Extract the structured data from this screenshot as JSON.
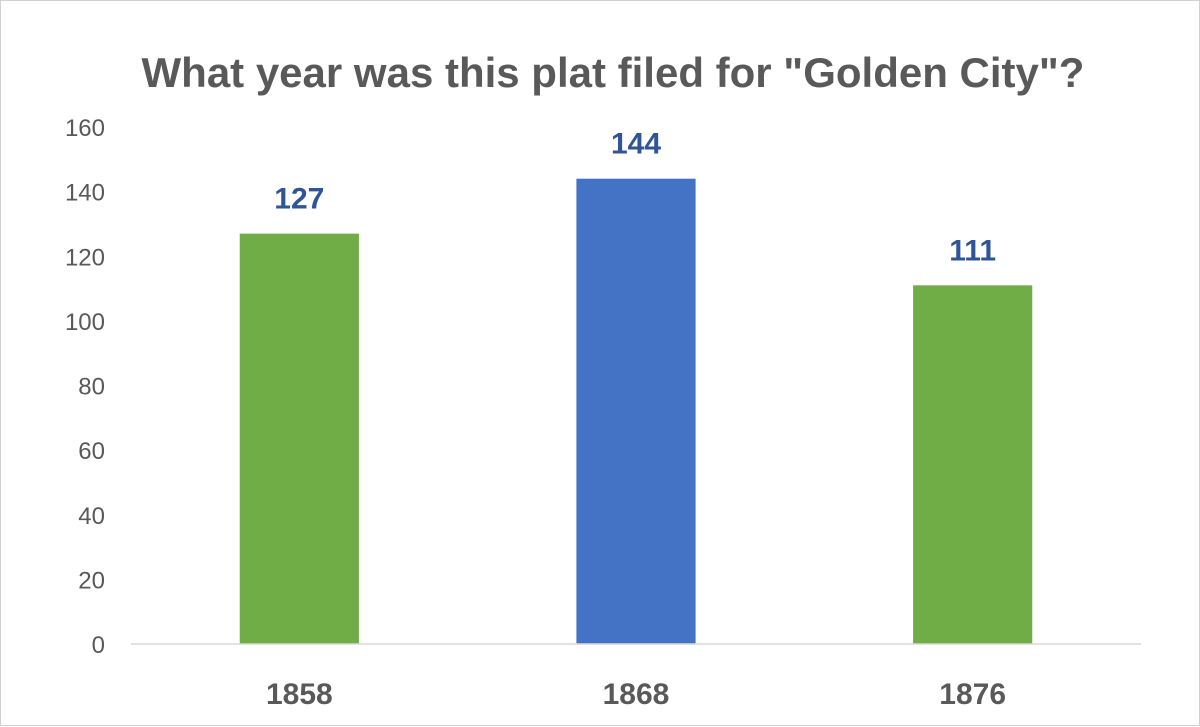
{
  "chart_data": {
    "type": "bar",
    "title": "What year was this plat filed for \"Golden City\"?",
    "xlabel": "",
    "ylabel": "",
    "categories": [
      "1858",
      "1868",
      "1876"
    ],
    "values": [
      127,
      144,
      111
    ],
    "data_labels": [
      "127",
      "144",
      "111"
    ],
    "bar_colors": [
      "#70AD47",
      "#4472C4",
      "#70AD47"
    ],
    "data_label_color": "#2F5597",
    "ylim": [
      0,
      160
    ],
    "y_ticks": [
      0,
      20,
      40,
      60,
      80,
      100,
      120,
      140,
      160
    ],
    "y_tick_labels": [
      "0",
      "20",
      "40",
      "60",
      "80",
      "100",
      "120",
      "140",
      "160"
    ],
    "grid": false,
    "legend": "none"
  }
}
